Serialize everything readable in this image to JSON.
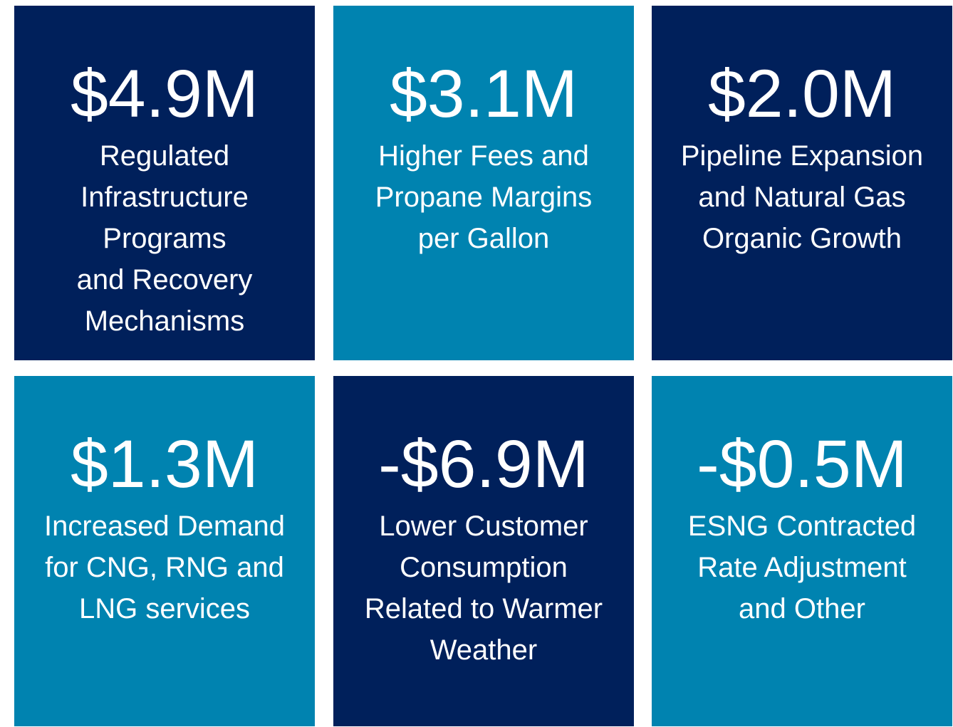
{
  "tiles": [
    {
      "value": "$4.9M",
      "lines": [
        "Regulated",
        "Infrastructure",
        "Programs",
        "and Recovery",
        "Mechanisms"
      ],
      "color": "#00205b"
    },
    {
      "value": "$3.1M",
      "lines": [
        "Higher Fees and",
        "Propane Margins",
        "per Gallon"
      ],
      "color": "#0083b0"
    },
    {
      "value": "$2.0M",
      "lines": [
        "Pipeline Expansion",
        "and Natural Gas",
        "Organic Growth"
      ],
      "color": "#00205b"
    },
    {
      "value": "$1.3M",
      "lines": [
        "Increased Demand",
        "for CNG, RNG and",
        "LNG services"
      ],
      "color": "#0083b0"
    },
    {
      "value": "-$6.9M",
      "lines": [
        "Lower Customer",
        "Consumption",
        "Related to Warmer",
        "Weather"
      ],
      "color": "#00205b"
    },
    {
      "value": "-$0.5M",
      "lines": [
        "ESNG Contracted",
        "Rate Adjustment",
        "and Other"
      ],
      "color": "#0083b0"
    }
  ]
}
